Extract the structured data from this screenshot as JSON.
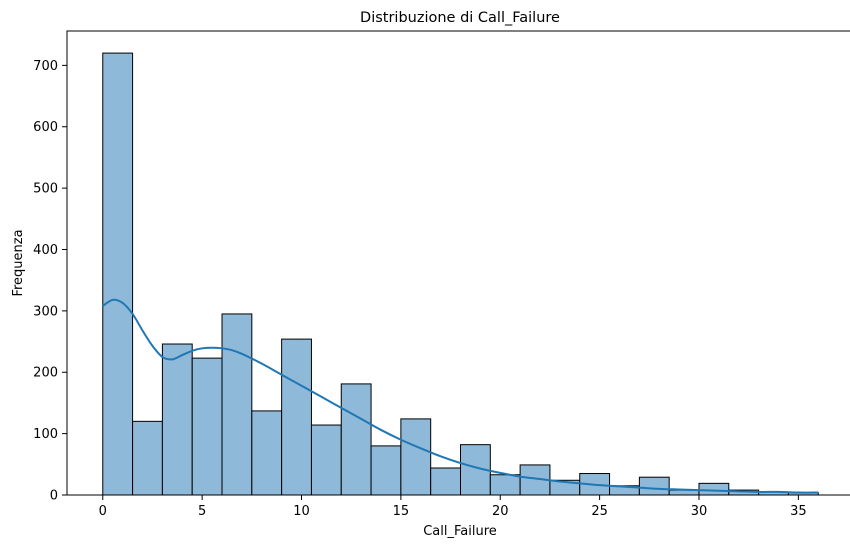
{
  "chart_data": {
    "type": "bar",
    "title": "Distribuzione di Call_Failure",
    "xlabel": "Call_Failure",
    "ylabel": "Frequenza",
    "xlim": [
      -1.8,
      37.8
    ],
    "ylim": [
      0,
      756
    ],
    "grid": false,
    "bins": {
      "start": 0,
      "width": 1.5,
      "counts": [
        720,
        120,
        246,
        223,
        295,
        137,
        254,
        114,
        181,
        80,
        124,
        44,
        82,
        33,
        49,
        24,
        35,
        15,
        29,
        8,
        19,
        8,
        5,
        4
      ]
    },
    "kde": {
      "x": [
        0,
        0.5,
        1,
        1.5,
        2,
        2.5,
        3,
        3.5,
        4,
        4.5,
        5,
        5.5,
        6,
        6.5,
        7,
        8,
        9,
        10,
        11,
        12,
        13,
        14,
        15,
        16,
        17,
        18,
        19,
        20,
        21,
        22,
        23,
        24,
        25,
        26,
        27,
        28,
        29,
        30,
        31,
        32,
        33,
        34,
        35,
        36
      ],
      "y": [
        308,
        318,
        313,
        295,
        268,
        243,
        225,
        221,
        228,
        235,
        239,
        240,
        239,
        236,
        230,
        214,
        196,
        178,
        160,
        142,
        124,
        106,
        90,
        76,
        63,
        52,
        43,
        36,
        30,
        26,
        22,
        19,
        16,
        14,
        12,
        10,
        9,
        8,
        7,
        6,
        5,
        5,
        4,
        4
      ]
    },
    "xticks": [
      0,
      5,
      10,
      15,
      20,
      25,
      30,
      35
    ],
    "yticks": [
      0,
      100,
      200,
      300,
      400,
      500,
      600,
      700
    ],
    "colors": {
      "bar_fill": "#8fb9d9",
      "bar_edge": "#000000",
      "kde_line": "#1f77b4"
    }
  }
}
